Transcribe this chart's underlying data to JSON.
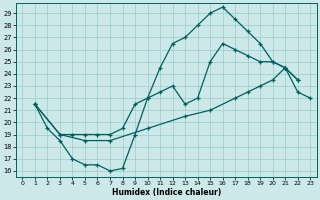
{
  "xlabel": "Humidex (Indice chaleur)",
  "bg_color": "#cce8e8",
  "line_color": "#006060",
  "grid_color": "#99cccc",
  "xlim": [
    -0.5,
    23.5
  ],
  "ylim": [
    15.5,
    29.8
  ],
  "xticks": [
    0,
    1,
    2,
    3,
    4,
    5,
    6,
    7,
    8,
    9,
    10,
    11,
    12,
    13,
    14,
    15,
    16,
    17,
    18,
    19,
    20,
    21,
    22,
    23
  ],
  "yticks": [
    16,
    17,
    18,
    19,
    20,
    21,
    22,
    23,
    24,
    25,
    26,
    27,
    28,
    29
  ],
  "line1_x": [
    1,
    2,
    3,
    4,
    5,
    6,
    7,
    8,
    9,
    10,
    11,
    12,
    13,
    14,
    15,
    16,
    17,
    18,
    19,
    20,
    21,
    22
  ],
  "line1_y": [
    21.5,
    19.5,
    18.5,
    17.0,
    16.5,
    16.5,
    16.0,
    16.2,
    19.0,
    22.0,
    24.5,
    26.5,
    27.0,
    28.0,
    29.0,
    29.5,
    28.5,
    27.5,
    26.5,
    25.0,
    24.5,
    23.5
  ],
  "line2_x": [
    1,
    3,
    4,
    5,
    6,
    7,
    8,
    9,
    10,
    11,
    12,
    13,
    14,
    15,
    16,
    17,
    18,
    19,
    20,
    21,
    22
  ],
  "line2_y": [
    21.5,
    19.0,
    19.0,
    19.0,
    19.0,
    19.0,
    19.5,
    21.5,
    22.0,
    22.5,
    23.0,
    21.5,
    22.0,
    25.0,
    26.5,
    26.0,
    25.5,
    25.0,
    25.0,
    24.5,
    23.5
  ],
  "line3_x": [
    1,
    3,
    5,
    7,
    10,
    13,
    15,
    17,
    18,
    19,
    20,
    21,
    22,
    23
  ],
  "line3_y": [
    21.5,
    19.0,
    18.5,
    18.5,
    19.5,
    20.5,
    21.0,
    22.0,
    22.5,
    23.0,
    23.5,
    24.5,
    22.5,
    22.0
  ]
}
